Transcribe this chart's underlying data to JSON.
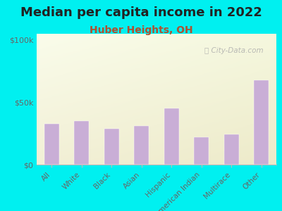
{
  "title": "Median per capita income in 2022",
  "subtitle": "Huber Heights, OH",
  "categories": [
    "All",
    "White",
    "Black",
    "Asian",
    "Hispanic",
    "American Indian",
    "Multirace",
    "Other"
  ],
  "values": [
    33000,
    35000,
    29000,
    31000,
    45000,
    22000,
    24000,
    68000
  ],
  "bar_color": "#c9aed6",
  "bar_edge_color": "#c9aed6",
  "yticks": [
    0,
    50000,
    100000
  ],
  "ytick_labels": [
    "$0",
    "$50k",
    "$100k"
  ],
  "ylim": [
    0,
    105000
  ],
  "background_outer": "#00f0f0",
  "watermark": "Ⓢ City-Data.com",
  "title_fontsize": 13,
  "subtitle_fontsize": 10,
  "subtitle_color": "#b05030",
  "title_color": "#222222",
  "tick_color": "#666666",
  "label_color": "#666666",
  "spine_color": "#bbbbbb"
}
